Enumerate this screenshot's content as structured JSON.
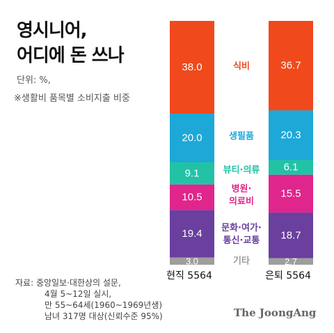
{
  "title_lines": [
    "영시니어,",
    "어디에 돈 쓰나"
  ],
  "unit": "단위: %,",
  "note": "※생활비 품목별 소비지출 비중",
  "source_lines": [
    "자료: 중앙일보·대한상의 설문,",
    "4월 5~12일 실시,",
    "만 55~64세(1960~1969년생)",
    "남녀 317명 대상(신뢰수준 95%)"
  ],
  "brand": "The JoongAng",
  "colors": {
    "food": "#f04a1c",
    "household": "#1da8d8",
    "beauty": "#22c2a6",
    "medical": "#e0258c",
    "culture": "#6a3f9e",
    "other": "#9e9e9e"
  },
  "chart_data": {
    "type": "bar",
    "stacked": true,
    "normalized_percent": true,
    "categories": [
      "현직 5564",
      "은퇴 5564"
    ],
    "series": [
      {
        "name": "식비",
        "color_key": "food",
        "label_color": "#f04a1c",
        "values": [
          38.0,
          36.7
        ],
        "labels": [
          "38.0",
          "36.7"
        ]
      },
      {
        "name": "생필품",
        "color_key": "household",
        "label_color": "#1da8d8",
        "values": [
          20.0,
          20.3
        ],
        "labels": [
          "20.0",
          "20.3"
        ]
      },
      {
        "name": "뷰티·의류",
        "color_key": "beauty",
        "label_color": "#22c2a6",
        "values": [
          9.1,
          6.1
        ],
        "labels": [
          "9.1",
          "6.1"
        ]
      },
      {
        "name": "병원·의료비",
        "name_lines": [
          "병원·",
          "의료비"
        ],
        "color_key": "medical",
        "label_color": "#e0258c",
        "values": [
          10.5,
          15.5
        ],
        "labels": [
          "10.5",
          "15.5"
        ]
      },
      {
        "name": "문화·여가·통신·교통",
        "name_lines": [
          "문화·여가·",
          "통신·교통"
        ],
        "color_key": "culture",
        "label_color": "#6a3f9e",
        "values": [
          19.4,
          18.7
        ],
        "labels": [
          "19.4",
          "18.7"
        ]
      },
      {
        "name": "기타",
        "color_key": "other",
        "label_color": "#9e9e9e",
        "values": [
          3.0,
          2.7
        ],
        "labels": [
          "3.0",
          "2.7"
        ]
      }
    ]
  }
}
